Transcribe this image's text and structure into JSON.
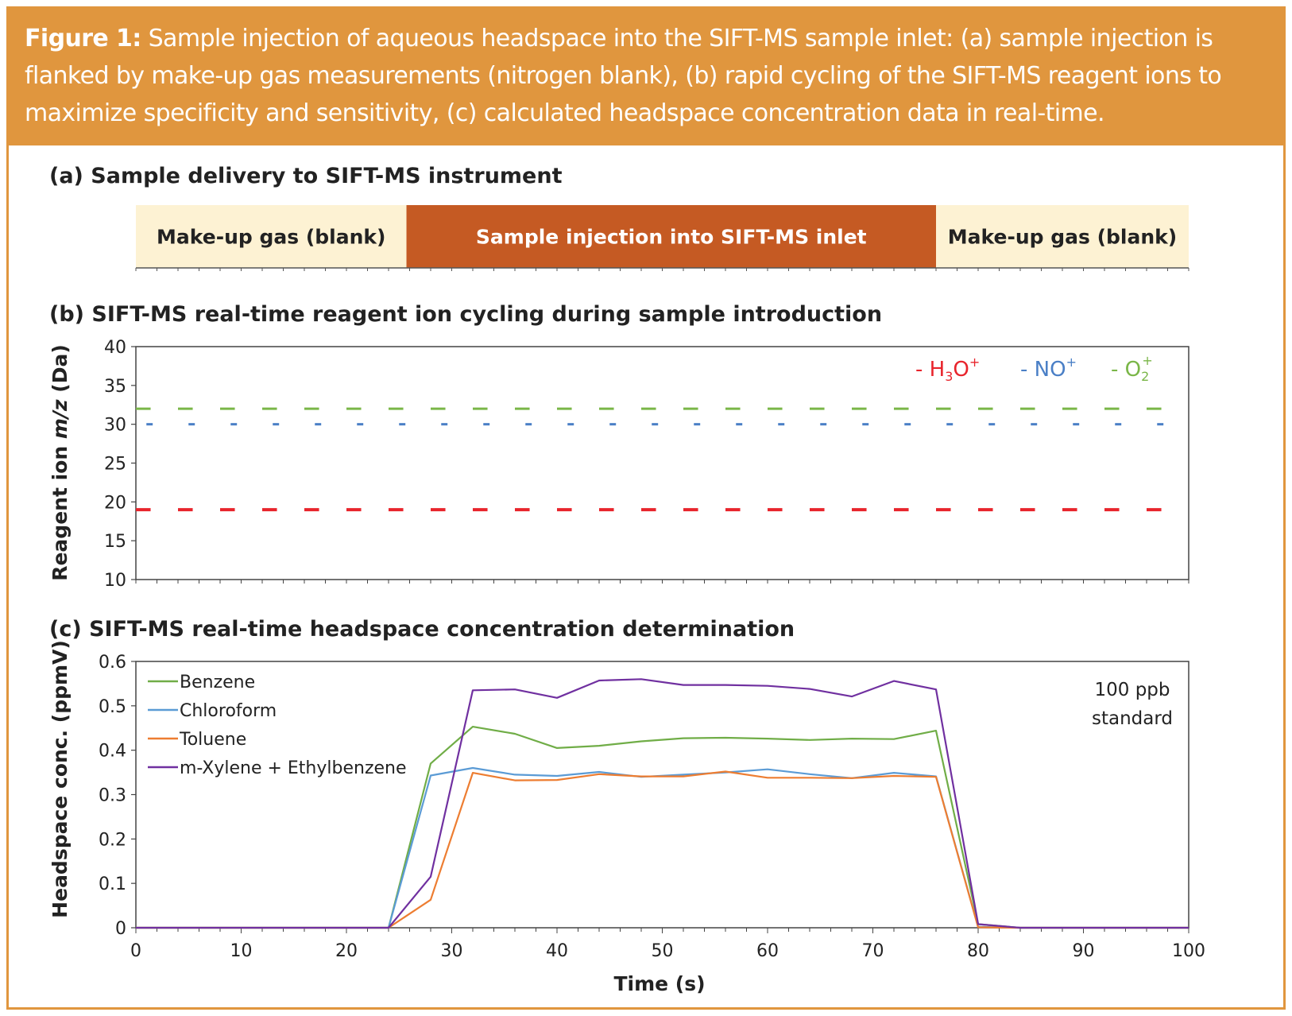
{
  "caption": {
    "label": "Figure 1:",
    "text": "Sample injection of aqueous headspace into the SIFT-MS sample inlet: (a) sample injection is flanked by make-up gas measurements (nitrogen blank), (b) rapid cycling of the SIFT-MS reagent ions to maximize specificity and sensitivity, (c) calculated headspace concentration data in real-time."
  },
  "colors": {
    "frame": "#e0963e",
    "makeup": "#fdf2d3",
    "injection": "#c55a23",
    "h3o": "#e8242c",
    "no": "#4a7fc6",
    "o2": "#7ab648",
    "benzene": "#70ad47",
    "chloroform": "#5b9bd5",
    "toluene": "#ed7d31",
    "xylene": "#7030a0"
  },
  "panel_a": {
    "title": "(a) Sample delivery to SIFT-MS instrument",
    "segments": [
      {
        "label": "Make-up gas (blank)",
        "start": 0,
        "end": 25.7,
        "kind": "makeup"
      },
      {
        "label": "Sample injection into SIFT-MS inlet",
        "start": 25.7,
        "end": 76,
        "kind": "injection"
      },
      {
        "label": "Make-up gas (blank)",
        "start": 76,
        "end": 100,
        "kind": "makeup"
      }
    ]
  },
  "chart_data": [
    {
      "type": "line",
      "title": "(b) SIFT-MS real-time reagent ion cycling during sample introduction",
      "ylabel_prefix": "Reagent ion ",
      "ylabel_italic": "m/z",
      "ylabel_suffix": " (Da)",
      "xlim": [
        0,
        100
      ],
      "ylim": [
        10,
        40
      ],
      "yticks": [
        10,
        15,
        20,
        25,
        30,
        35,
        40
      ],
      "grid": false,
      "legend_position": "top-right",
      "series": [
        {
          "name": "H3O+",
          "legend_main": "- H",
          "legend_sub": "3",
          "legend_tail": "O",
          "legend_sup": "+",
          "color_key": "h3o",
          "y": 19,
          "x_start": 0,
          "x_end": 97,
          "dash_period": 4
        },
        {
          "name": "NO+",
          "legend_main": "- NO",
          "legend_sub": "",
          "legend_tail": "",
          "legend_sup": "+",
          "color_key": "no",
          "y": 30,
          "x_start": 1,
          "x_end": 98,
          "dash_period": 4
        },
        {
          "name": "O2+",
          "legend_main": "- O",
          "legend_sub": "2",
          "legend_tail": "",
          "legend_sup": "+",
          "color_key": "o2",
          "y": 32,
          "x_start": 0,
          "x_end": 100,
          "dash_period": 4
        }
      ]
    },
    {
      "type": "line",
      "title": "(c) SIFT-MS real-time headspace concentration determination",
      "xlabel": "Time (s)",
      "ylabel": "Headspace conc. (ppmV)",
      "xlim": [
        0,
        100
      ],
      "ylim": [
        0,
        0.6
      ],
      "xticks": [
        0,
        10,
        20,
        30,
        40,
        50,
        60,
        70,
        80,
        90,
        100
      ],
      "yticks": [
        0,
        0.1,
        0.2,
        0.3,
        0.4,
        0.5,
        0.6
      ],
      "grid": false,
      "legend_position": "top-left",
      "annotation": [
        "100 ppb",
        "standard"
      ],
      "x": [
        0,
        4,
        8,
        12,
        16,
        20,
        24,
        28,
        32,
        36,
        40,
        44,
        48,
        52,
        56,
        60,
        64,
        68,
        72,
        76,
        80,
        84,
        88,
        92,
        96,
        100
      ],
      "series": [
        {
          "name": "Benzene",
          "color_key": "benzene",
          "values": [
            0,
            0,
            0,
            0,
            0,
            0,
            0,
            0.37,
            0.453,
            0.437,
            0.405,
            0.41,
            0.42,
            0.427,
            0.428,
            0.426,
            0.423,
            0.426,
            0.425,
            0.444,
            0.008,
            0,
            0,
            0,
            0,
            0
          ]
        },
        {
          "name": "Chloroform",
          "color_key": "chloroform",
          "values": [
            0,
            0,
            0,
            0,
            0,
            0,
            0,
            0.343,
            0.36,
            0.345,
            0.342,
            0.351,
            0.34,
            0.345,
            0.35,
            0.357,
            0.346,
            0.337,
            0.349,
            0.341,
            0.002,
            0,
            0,
            0,
            0,
            0
          ]
        },
        {
          "name": "Toluene",
          "color_key": "toluene",
          "values": [
            0,
            0,
            0,
            0,
            0,
            0,
            0,
            0.063,
            0.349,
            0.332,
            0.333,
            0.346,
            0.341,
            0.341,
            0.352,
            0.338,
            0.338,
            0.337,
            0.342,
            0.34,
            0.001,
            0,
            0,
            0,
            0,
            0
          ]
        },
        {
          "name": "m-Xylene + Ethylbenzene",
          "color_key": "xylene",
          "values": [
            0,
            0,
            0,
            0,
            0,
            0,
            0,
            0.115,
            0.535,
            0.537,
            0.518,
            0.557,
            0.56,
            0.547,
            0.547,
            0.545,
            0.538,
            0.521,
            0.556,
            0.537,
            0.008,
            0,
            0,
            0,
            0,
            0
          ]
        }
      ]
    }
  ]
}
